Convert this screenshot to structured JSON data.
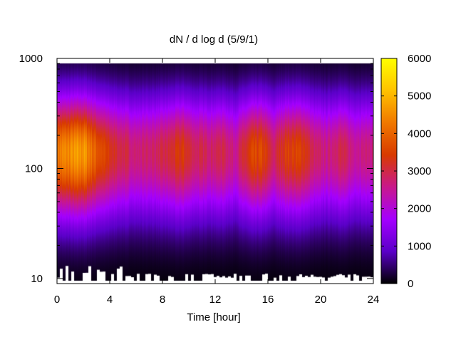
{
  "chart_data": {
    "type": "heatmap",
    "title": "dN / d log d (5/9/1)",
    "xlabel": "Time [hour]",
    "ylabel": "",
    "xlim": [
      0,
      24
    ],
    "ylim": [
      9,
      1000
    ],
    "y_scale": "log",
    "x_ticks": [
      0,
      4,
      8,
      12,
      16,
      20,
      24
    ],
    "x_tick_labels": [
      "0",
      "4",
      "8",
      "12",
      "16",
      "20",
      "24"
    ],
    "y_ticks": [
      10,
      100,
      1000
    ],
    "y_tick_labels": [
      "10",
      "100",
      "1000"
    ],
    "colorbar": {
      "range": [
        0,
        6000
      ],
      "ticks": [
        0,
        1000,
        2000,
        3000,
        4000,
        5000,
        6000
      ],
      "tick_labels": [
        "0",
        "1000",
        "2000",
        "3000",
        "4000",
        "5000",
        "6000"
      ],
      "colors": [
        "#000000",
        "#5a00c8",
        "#a400ff",
        "#c8188c",
        "#d83a00",
        "#f07800",
        "#ffc200",
        "#ffff00"
      ]
    },
    "peak_diameter": 140,
    "description_points": [
      {
        "time": 0.0,
        "peak": 4300
      },
      {
        "time": 1.0,
        "peak": 4500
      },
      {
        "time": 2.0,
        "peak": 4700
      },
      {
        "time": 3.0,
        "peak": 3900
      },
      {
        "time": 4.0,
        "peak": 3300
      },
      {
        "time": 5.0,
        "peak": 3000
      },
      {
        "time": 6.0,
        "peak": 2700
      },
      {
        "time": 7.0,
        "peak": 2800
      },
      {
        "time": 8.0,
        "peak": 2900
      },
      {
        "time": 9.5,
        "peak": 3400
      },
      {
        "time": 10.5,
        "peak": 2900
      },
      {
        "time": 12.0,
        "peak": 2900
      },
      {
        "time": 12.5,
        "peak": 3000
      },
      {
        "time": 13.5,
        "peak": 2600
      },
      {
        "time": 14.8,
        "peak": 3500
      },
      {
        "time": 15.6,
        "peak": 3600
      },
      {
        "time": 16.4,
        "peak": 2800
      },
      {
        "time": 17.3,
        "peak": 3500
      },
      {
        "time": 18.7,
        "peak": 3500
      },
      {
        "time": 19.5,
        "peak": 2800
      },
      {
        "time": 20.5,
        "peak": 2600
      },
      {
        "time": 21.4,
        "peak": 3000
      },
      {
        "time": 22.5,
        "peak": 2600
      },
      {
        "time": 24.0,
        "peak": 2700
      }
    ]
  }
}
